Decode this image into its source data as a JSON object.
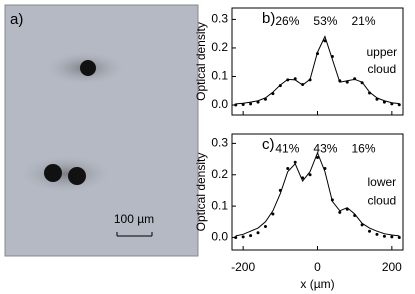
{
  "image_panel": {
    "label": "a)",
    "scale_bar": "100 µm"
  },
  "chart_data": [
    {
      "type": "line",
      "label": "b)",
      "annotations": [
        "26%",
        "53%",
        "21%",
        "upper",
        "cloud"
      ],
      "ylabel": "Optical density",
      "xlim": [
        -230,
        230
      ],
      "ylim": [
        -0.035,
        0.34
      ],
      "xticks": [
        -200,
        0,
        200
      ],
      "show_xtick_labels": false,
      "yticks": [
        {
          "value": 0,
          "label": "0.0"
        },
        0.1,
        0.2,
        0.3
      ],
      "x": [
        -220,
        -200,
        -180,
        -160,
        -140,
        -120,
        -100,
        -80,
        -60,
        -40,
        -20,
        0,
        20,
        40,
        60,
        80,
        100,
        120,
        140,
        160,
        180,
        200,
        220
      ],
      "series": [
        {
          "color": "#000000",
          "marker": true,
          "values": [
            0,
            0.002,
            0.004,
            0.01,
            0.02,
            0.04,
            0.068,
            0.088,
            0.092,
            0.072,
            0.088,
            0.18,
            0.225,
            0.17,
            0.085,
            0.08,
            0.092,
            0.078,
            0.042,
            0.02,
            0.01,
            0.004,
            0.001
          ]
        },
        {
          "color": "#000000",
          "marker": false,
          "values": [
            0.004,
            0.006,
            0.01,
            0.015,
            0.025,
            0.045,
            0.07,
            0.09,
            0.088,
            0.07,
            0.09,
            0.185,
            0.24,
            0.16,
            0.08,
            0.085,
            0.09,
            0.08,
            0.045,
            0.025,
            0.015,
            0.008,
            0.005
          ]
        }
      ]
    },
    {
      "type": "line",
      "label": "c)",
      "annotations": [
        "41%",
        "43%",
        "16%",
        "lower",
        "cloud"
      ],
      "ylabel": "Optical density",
      "xlabel": "x (µm)",
      "xlim": [
        -230,
        230
      ],
      "ylim": [
        -0.04,
        0.33
      ],
      "xticks": [
        -200,
        0,
        200
      ],
      "show_xtick_labels": true,
      "yticks": [
        {
          "value": 0,
          "label": "0.0"
        },
        0.1,
        0.2,
        0.3
      ],
      "x": [
        -220,
        -200,
        -180,
        -160,
        -140,
        -120,
        -100,
        -80,
        -60,
        -40,
        -20,
        0,
        20,
        40,
        60,
        80,
        100,
        120,
        140,
        160,
        180,
        200,
        220
      ],
      "series": [
        {
          "color": "#000000",
          "marker": true,
          "values": [
            0,
            0.002,
            0.006,
            0.015,
            0.035,
            0.075,
            0.15,
            0.22,
            0.24,
            0.19,
            0.2,
            0.255,
            0.22,
            0.12,
            0.08,
            0.09,
            0.07,
            0.04,
            0.02,
            0.01,
            0.004,
            0.002,
            0
          ]
        },
        {
          "color": "#000000",
          "marker": false,
          "values": [
            0.005,
            0.01,
            0.02,
            0.03,
            0.05,
            0.085,
            0.14,
            0.21,
            0.235,
            0.18,
            0.21,
            0.27,
            0.21,
            0.115,
            0.085,
            0.095,
            0.075,
            0.045,
            0.03,
            0.02,
            0.012,
            0.008,
            0.005
          ]
        }
      ]
    }
  ]
}
